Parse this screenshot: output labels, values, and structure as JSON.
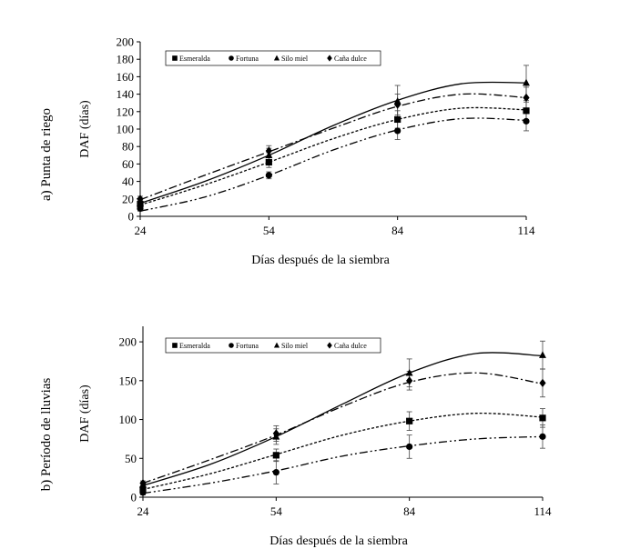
{
  "chart_data": [
    {
      "type": "line",
      "panel_label": "a) Punta de riego",
      "ylabel": "DAF  (días)",
      "xlabel": "Días después de la siembra",
      "x": [
        24,
        54,
        84,
        114
      ],
      "xlim": [
        24,
        114
      ],
      "ylim": [
        0,
        200
      ],
      "yticks": [
        0,
        20,
        40,
        60,
        80,
        100,
        120,
        140,
        160,
        180,
        200
      ],
      "xticks": [
        24,
        54,
        84,
        114
      ],
      "legend_position": "top",
      "series": [
        {
          "name": "Esmeralda",
          "marker": "square",
          "dash": "3,2",
          "values": [
            14,
            62,
            111,
            121
          ],
          "errors": [
            3,
            6,
            10,
            10
          ],
          "fit": {
            "x": [
              24,
              39,
              54,
              69,
              84,
              99,
              114
            ],
            "y": [
              13,
              36,
              62,
              89,
              111,
              124,
              122
            ]
          }
        },
        {
          "name": "Fortuna",
          "marker": "circle",
          "dash": "9,3,2,3,2,3",
          "values": [
            9,
            47,
            98,
            109
          ],
          "errors": [
            3,
            4,
            10,
            11
          ],
          "fit": {
            "x": [
              24,
              39,
              54,
              69,
              84,
              99,
              114
            ],
            "y": [
              6,
              22,
              47,
              76,
              99,
              112,
              110
            ]
          }
        },
        {
          "name": "Silo miel",
          "marker": "triangle",
          "dash": "",
          "values": [
            15,
            70,
            132,
            153
          ],
          "errors": [
            3,
            8,
            18,
            20
          ],
          "fit": {
            "x": [
              24,
              39,
              54,
              69,
              84,
              99,
              114
            ],
            "y": [
              15,
              40,
              70,
              104,
              133,
              152,
              153
            ]
          }
        },
        {
          "name": "Caña dulce",
          "marker": "diamond",
          "dash": "9,3,2,3",
          "values": [
            20,
            75,
            128,
            136
          ],
          "errors": [
            3,
            6,
            12,
            12
          ],
          "fit": {
            "x": [
              24,
              39,
              54,
              69,
              84,
              99,
              114
            ],
            "y": [
              19,
              47,
              74,
              101,
              126,
              140,
              136
            ]
          }
        }
      ]
    },
    {
      "type": "line",
      "panel_label": "b) Período de lluvias",
      "ylabel": "DAF  (días)",
      "xlabel": "Días después de la siembra",
      "x": [
        24,
        54,
        84,
        114
      ],
      "xlim": [
        24,
        114
      ],
      "ylim": [
        0,
        220
      ],
      "yticks": [
        0,
        50,
        100,
        150,
        200
      ],
      "xticks": [
        24,
        54,
        84,
        114
      ],
      "legend_position": "top",
      "series": [
        {
          "name": "Esmeralda",
          "marker": "square",
          "dash": "3,2",
          "values": [
            10,
            54,
            98,
            102
          ],
          "errors": [
            4,
            8,
            12,
            12
          ],
          "fit": {
            "x": [
              24,
              39,
              54,
              69,
              84,
              99,
              114
            ],
            "y": [
              10,
              30,
              55,
              80,
              98,
              108,
              103
            ]
          }
        },
        {
          "name": "Fortuna",
          "marker": "circle",
          "dash": "9,3,2,3,2,3",
          "values": [
            6,
            32,
            65,
            78
          ],
          "errors": [
            3,
            15,
            15,
            15
          ],
          "fit": {
            "x": [
              24,
              39,
              54,
              69,
              84,
              99,
              114
            ],
            "y": [
              5,
              18,
              34,
              53,
              66,
              75,
              78
            ]
          }
        },
        {
          "name": "Silo miel",
          "marker": "triangle",
          "dash": "",
          "values": [
            16,
            78,
            160,
            183
          ],
          "errors": [
            3,
            10,
            18,
            18
          ],
          "fit": {
            "x": [
              24,
              39,
              54,
              69,
              84,
              99,
              114
            ],
            "y": [
              15,
              42,
              78,
              120,
              160,
              185,
              182
            ]
          }
        },
        {
          "name": "Caña dulce",
          "marker": "diamond",
          "dash": "9,3,2,3",
          "values": [
            18,
            82,
            150,
            147
          ],
          "errors": [
            3,
            10,
            12,
            18
          ],
          "fit": {
            "x": [
              24,
              39,
              54,
              69,
              84,
              99,
              114
            ],
            "y": [
              18,
              48,
              80,
              117,
              148,
              160,
              146
            ]
          }
        }
      ]
    }
  ]
}
